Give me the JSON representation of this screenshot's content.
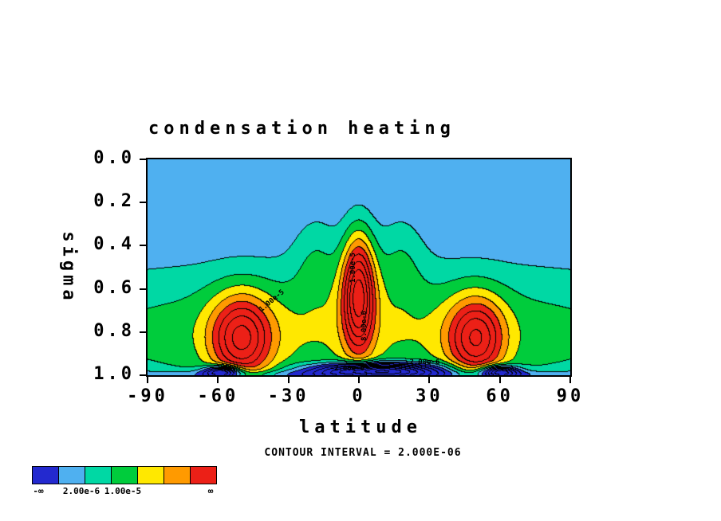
{
  "title": "condensation heating",
  "axes": {
    "x_label": "latitude",
    "y_label": "sigma",
    "x_ticks": [
      "-90",
      "-60",
      "-30",
      "0",
      "30",
      "60",
      "90"
    ],
    "y_ticks": [
      "0.0",
      "0.2",
      "0.4",
      "0.6",
      "0.8",
      "1.0"
    ]
  },
  "notes": {
    "contour_interval": "CONTOUR INTERVAL = 2.000E-06"
  },
  "colorbar": {
    "labels": [
      {
        "text": "-∞",
        "x": 8
      },
      {
        "text": "2.00e-6",
        "x": 62
      },
      {
        "text": "1.00e-5",
        "x": 114
      },
      {
        "text": "∞",
        "x": 224
      }
    ]
  },
  "chart_data": {
    "type": "heatmap",
    "subtype": "filled-contour",
    "title": "condensation heating",
    "xlabel": "latitude",
    "ylabel": "sigma",
    "x_range": [
      -90,
      90
    ],
    "y_range": [
      0,
      1
    ],
    "y_axis_points_down": true,
    "grid": false,
    "contour_interval": 2e-06,
    "level_scale": 1e-06,
    "fill_levels_scaled": [
      0,
      2,
      4,
      6,
      8,
      10
    ],
    "fill_colors": [
      "#2329cf",
      "#4fb0f0",
      "#00d8a4",
      "#00cc3c",
      "#ffe800",
      "#ff9a00",
      "#ec2017"
    ],
    "line_color": "#000000",
    "field_components": [
      {
        "name": "broad-background-heating",
        "amp": 6.0,
        "lat0": 0,
        "latw": 170,
        "s0": 0.81,
        "sw": 0.33
      },
      {
        "name": "equatorial-tower",
        "amp": 15.0,
        "lat0": 0,
        "latw": 7,
        "s0": 0.61,
        "sw": 0.27
      },
      {
        "name": "tropical-shoulder-south",
        "amp": 2.5,
        "lat0": -18,
        "latw": 10,
        "s0": 0.45,
        "sw": 0.22
      },
      {
        "name": "tropical-shoulder-north",
        "amp": 2.5,
        "lat0": 18,
        "latw": 10,
        "s0": 0.45,
        "sw": 0.22
      },
      {
        "name": "midlatitude-max-south",
        "amp": 11.5,
        "lat0": -50,
        "latw": 13,
        "s0": 0.83,
        "sw": 0.2
      },
      {
        "name": "midlatitude-max-north",
        "amp": 11.0,
        "lat0": 50,
        "latw": 12,
        "s0": 0.83,
        "sw": 0.19
      },
      {
        "name": "surface-cooling-tropics",
        "amp": -20.0,
        "lat0": 8,
        "latw": 26,
        "s0": 0.98,
        "sw": 0.035
      },
      {
        "name": "surface-cooling-south",
        "amp": -14.0,
        "lat0": -58,
        "latw": 8,
        "s0": 0.985,
        "sw": 0.028
      },
      {
        "name": "surface-cooling-north",
        "amp": -14.0,
        "lat0": 60,
        "latw": 8,
        "s0": 0.985,
        "sw": 0.028
      },
      {
        "name": "surface-film",
        "amp": -3.0,
        "lat0": 0,
        "latw": 500,
        "s0": 1.0,
        "sw": 0.02
      }
    ],
    "contour_labels": [
      {
        "text": "1.00e-5",
        "lat": -37,
        "sigma": 0.655,
        "rot": -40
      },
      {
        "text": "1.00e-5",
        "lat": -2.5,
        "sigma": 0.5,
        "rot": -90
      },
      {
        "text": "8.00e-6",
        "lat": 2.5,
        "sigma": 0.77,
        "rot": -90
      },
      {
        "text": "2.00e-6",
        "lat": 28,
        "sigma": 0.94,
        "rot": 0
      },
      {
        "text": "-2.00e-6",
        "lat": -5,
        "sigma": 0.972,
        "rot": 0
      }
    ]
  }
}
